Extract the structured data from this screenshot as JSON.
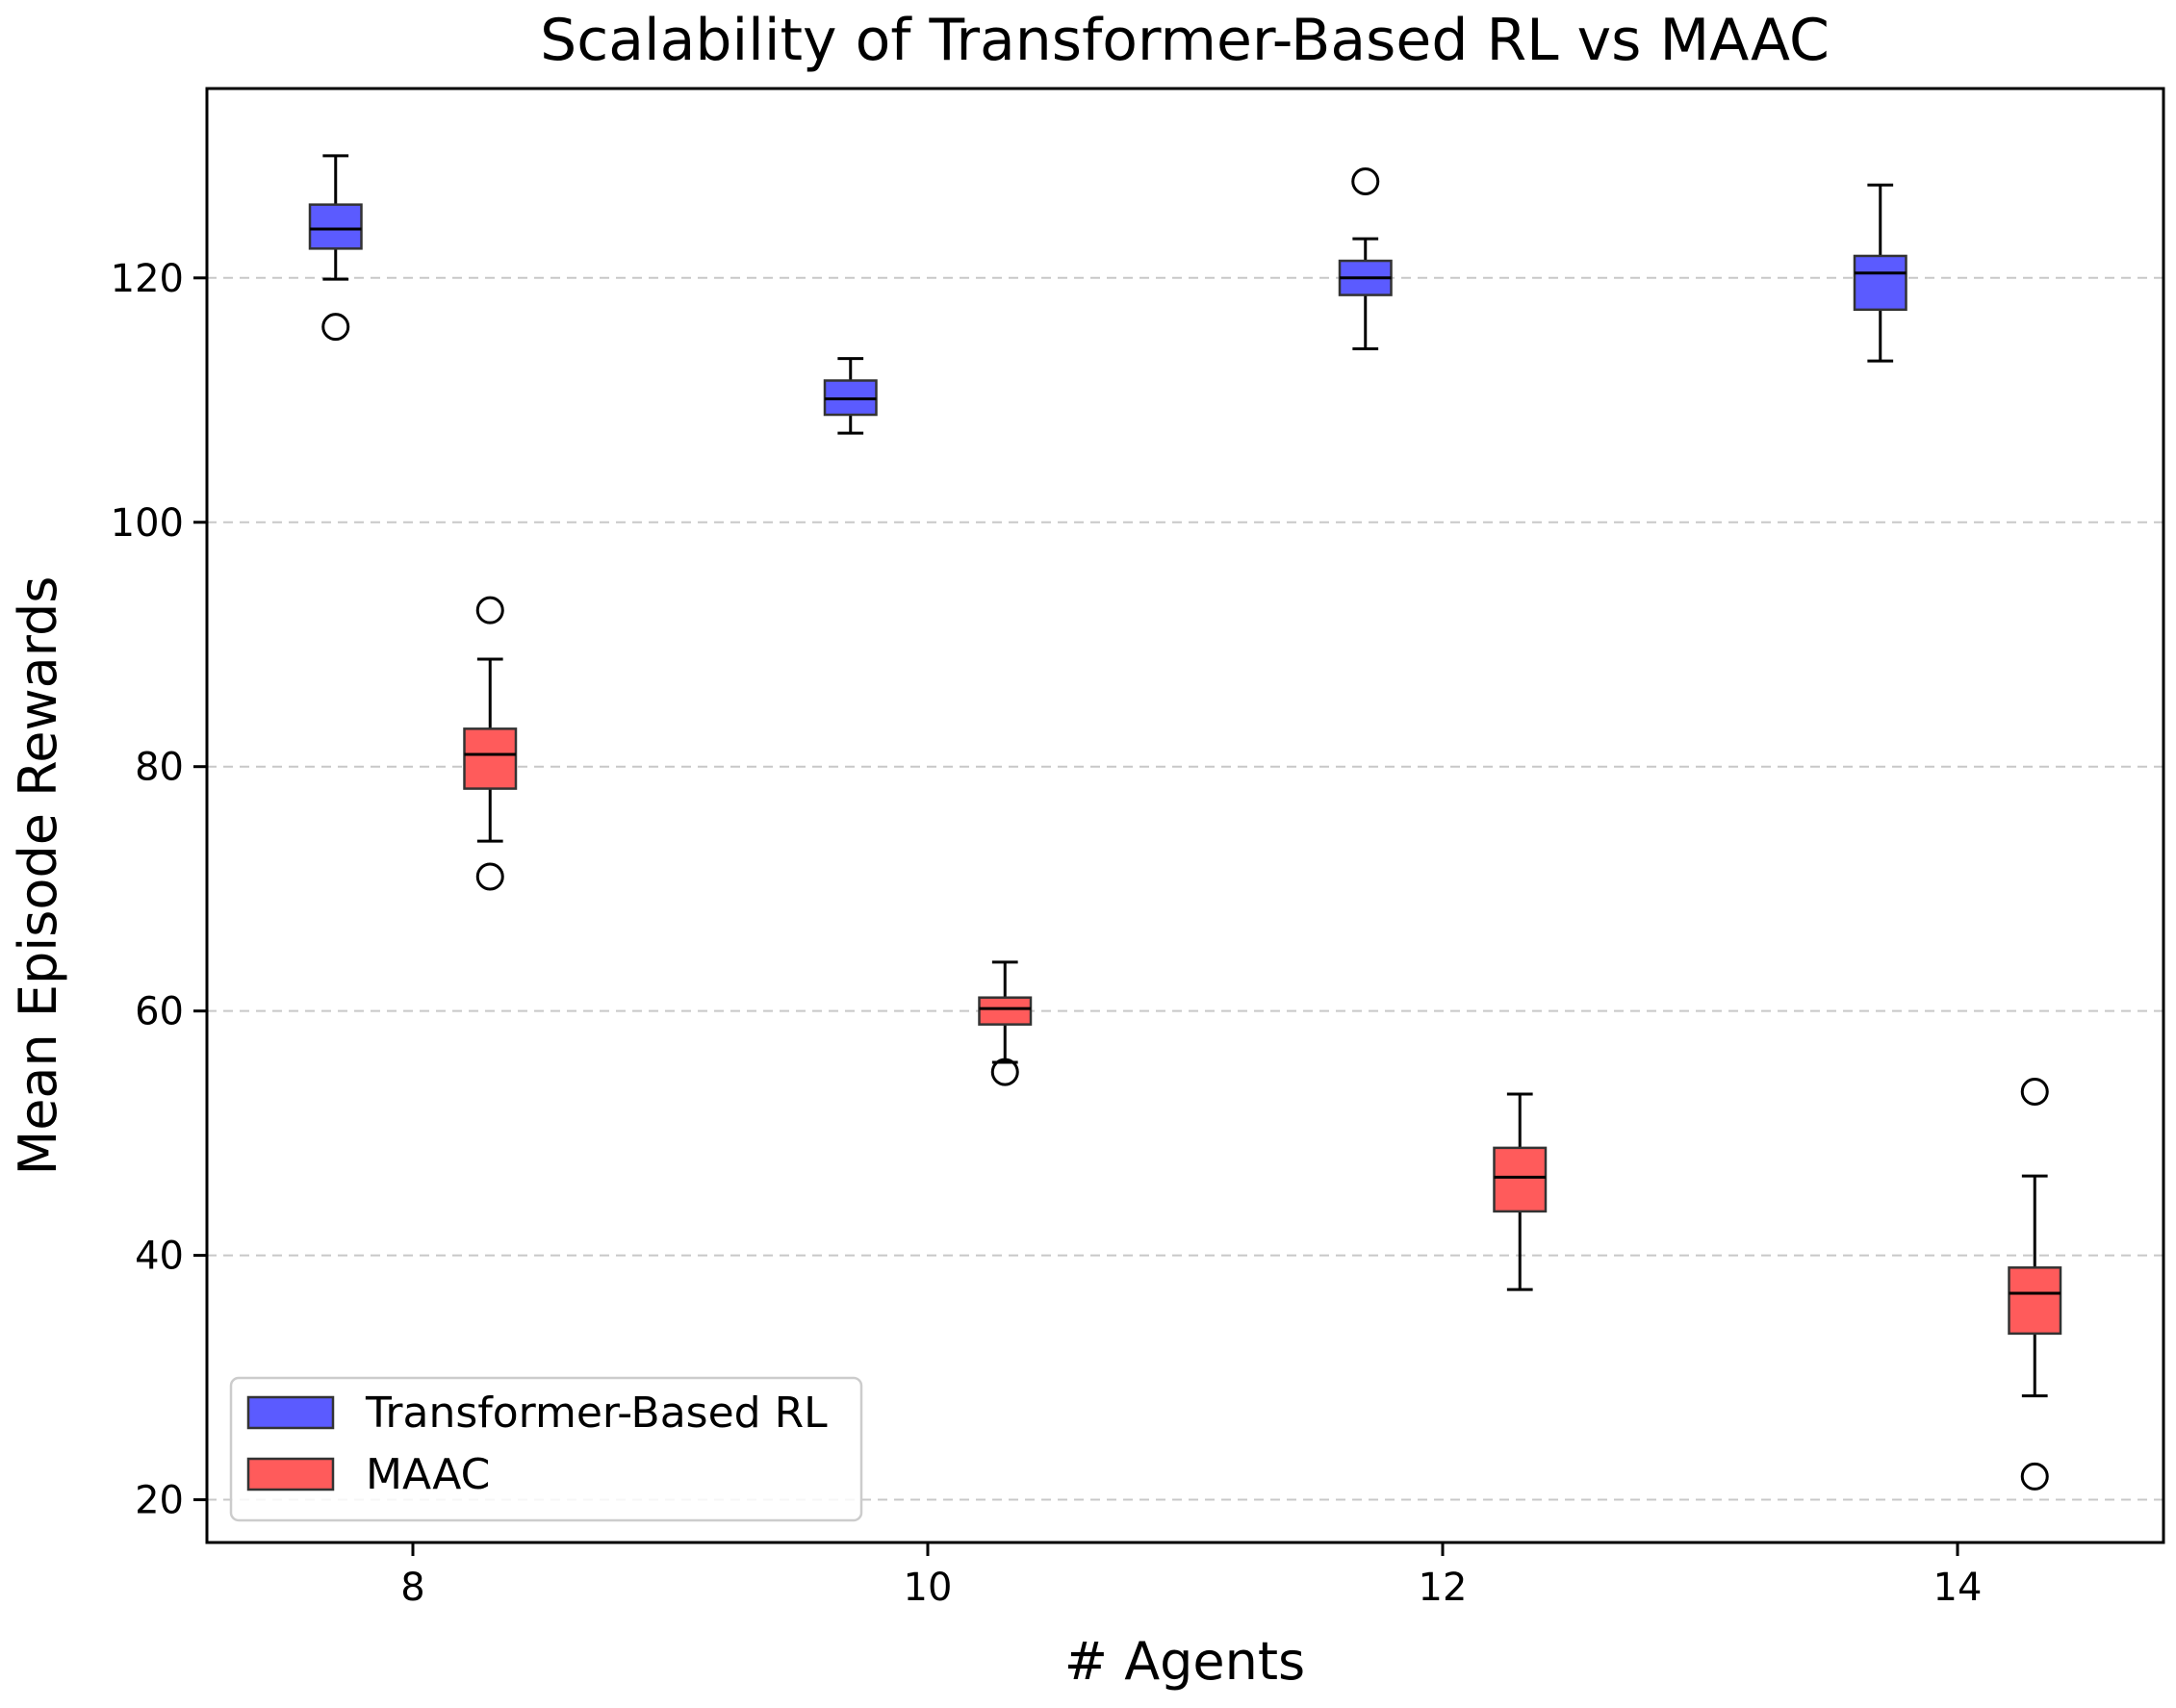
{
  "chart_data": {
    "type": "box",
    "title": "Scalability of Transformer-Based RL vs MAAC",
    "xlabel": "# Agents",
    "ylabel": "Mean Episode Rewards",
    "xlim": [
      7.2,
      14.8
    ],
    "ylim": [
      16.5,
      135.5
    ],
    "x_ticks": [
      8,
      10,
      12,
      14
    ],
    "y_ticks": [
      20,
      40,
      60,
      80,
      100,
      120
    ],
    "grid": "y-dashed",
    "legend_position": "lower-left",
    "series": [
      {
        "name": "Transformer-Based RL",
        "color": "#5b5bff",
        "boxes": [
          {
            "x": 7.7,
            "whisker_low": 119.9,
            "q1": 122.4,
            "median": 124.0,
            "q3": 126.0,
            "whisker_high": 130.0,
            "outliers": [
              116.0
            ]
          },
          {
            "x": 9.7,
            "whisker_low": 107.3,
            "q1": 108.8,
            "median": 110.1,
            "q3": 111.6,
            "whisker_high": 113.4,
            "outliers": []
          },
          {
            "x": 11.7,
            "whisker_low": 114.2,
            "q1": 118.6,
            "median": 120.0,
            "q3": 121.4,
            "whisker_high": 123.2,
            "outliers": [
              127.9
            ]
          },
          {
            "x": 13.7,
            "whisker_low": 113.2,
            "q1": 117.4,
            "median": 120.4,
            "q3": 121.8,
            "whisker_high": 127.6,
            "outliers": []
          }
        ]
      },
      {
        "name": "MAAC",
        "color": "#ff5b5b",
        "boxes": [
          {
            "x": 8.3,
            "whisker_low": 73.9,
            "q1": 78.2,
            "median": 81.0,
            "q3": 83.1,
            "whisker_high": 88.8,
            "outliers": [
              92.8,
              71.0
            ]
          },
          {
            "x": 10.3,
            "whisker_low": 55.8,
            "q1": 58.9,
            "median": 60.2,
            "q3": 61.1,
            "whisker_high": 64.0,
            "outliers": [
              55.0
            ]
          },
          {
            "x": 12.3,
            "whisker_low": 37.2,
            "q1": 43.6,
            "median": 46.4,
            "q3": 48.8,
            "whisker_high": 53.2,
            "outliers": []
          },
          {
            "x": 14.3,
            "whisker_low": 28.5,
            "q1": 33.6,
            "median": 36.9,
            "q3": 39.0,
            "whisker_high": 46.5,
            "outliers": [
              53.4,
              21.9
            ]
          }
        ]
      }
    ]
  }
}
